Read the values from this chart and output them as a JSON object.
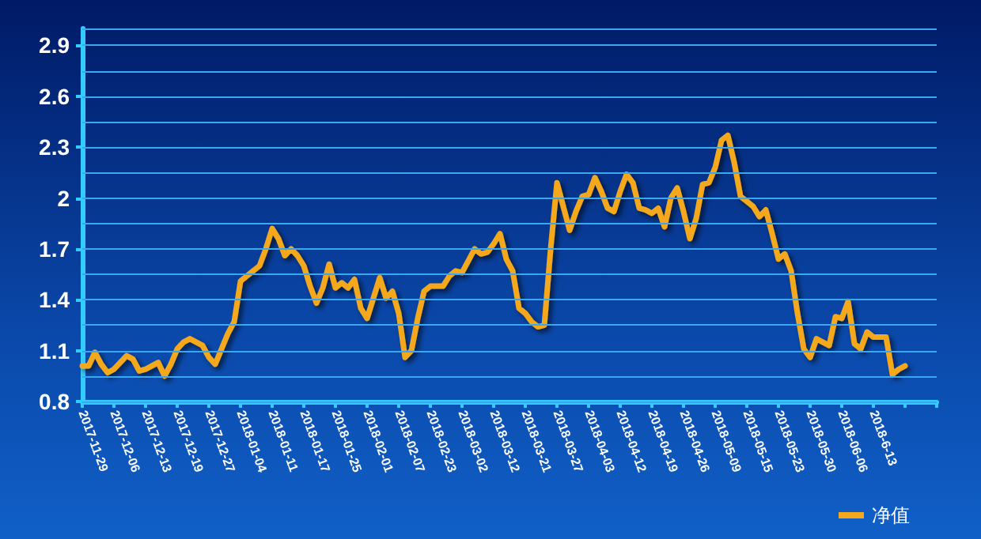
{
  "chart_data": {
    "type": "line",
    "categories": [
      "2017-11-29",
      null,
      null,
      null,
      null,
      "2017-12-06",
      null,
      null,
      null,
      null,
      "2017-12-13",
      null,
      null,
      null,
      null,
      "2017-12-19",
      null,
      null,
      null,
      null,
      "2017-12-27",
      null,
      null,
      null,
      null,
      "2018-01-04",
      null,
      null,
      null,
      null,
      "2018-01-11",
      null,
      null,
      null,
      null,
      "2018-01-17",
      null,
      null,
      null,
      null,
      "2018-01-25",
      null,
      null,
      null,
      null,
      "2018-02-01",
      null,
      null,
      null,
      null,
      "2018-02-07",
      null,
      null,
      null,
      null,
      "2018-02-23",
      null,
      null,
      null,
      null,
      "2018-03-02",
      null,
      null,
      null,
      null,
      "2018-03-12",
      null,
      null,
      null,
      null,
      "2018-03-21",
      null,
      null,
      null,
      null,
      "2018-03-27",
      null,
      null,
      null,
      null,
      "2018-04-03",
      null,
      null,
      null,
      null,
      "2018-04-12",
      null,
      null,
      null,
      null,
      "2018-04-19",
      null,
      null,
      null,
      null,
      "2018-04-26",
      null,
      null,
      null,
      null,
      "2018-05-09",
      null,
      null,
      null,
      null,
      "2018-05-15",
      null,
      null,
      null,
      null,
      "2018-05-23",
      null,
      null,
      null,
      null,
      "2018-05-30",
      null,
      null,
      null,
      null,
      "2018-06-06",
      null,
      null,
      null,
      null,
      "2018-6-13",
      null,
      null,
      null,
      null,
      null,
      null,
      null,
      null,
      null,
      null
    ],
    "series": [
      {
        "name": "净值",
        "color": "#f5a81c",
        "values": [
          1.01,
          1.01,
          1.09,
          1.02,
          0.97,
          0.99,
          1.03,
          1.07,
          1.05,
          0.98,
          0.99,
          1.01,
          1.03,
          0.95,
          1.02,
          1.11,
          1.15,
          1.17,
          1.15,
          1.13,
          1.06,
          1.02,
          1.11,
          1.2,
          1.27,
          1.51,
          1.54,
          1.57,
          1.6,
          1.7,
          1.82,
          1.76,
          1.66,
          1.7,
          1.66,
          1.6,
          1.48,
          1.38,
          1.47,
          1.61,
          1.47,
          1.5,
          1.47,
          1.52,
          1.35,
          1.29,
          1.41,
          1.53,
          1.41,
          1.45,
          1.32,
          1.06,
          1.1,
          1.29,
          1.45,
          1.48,
          1.48,
          1.48,
          1.54,
          1.57,
          1.56,
          1.63,
          1.7,
          1.67,
          1.68,
          1.73,
          1.79,
          1.64,
          1.57,
          1.35,
          1.32,
          1.27,
          1.24,
          1.25,
          1.7,
          2.09,
          1.95,
          1.81,
          1.92,
          2.01,
          2.02,
          2.12,
          2.04,
          1.94,
          1.92,
          2.04,
          2.14,
          2.09,
          1.94,
          1.93,
          1.91,
          1.94,
          1.83,
          2.0,
          2.06,
          1.92,
          1.76,
          1.88,
          2.08,
          2.09,
          2.18,
          2.34,
          2.37,
          2.21,
          2.01,
          1.98,
          1.95,
          1.89,
          1.93,
          1.79,
          1.64,
          1.67,
          1.57,
          1.32,
          1.11,
          1.06,
          1.17,
          1.15,
          1.13,
          1.3,
          1.29,
          1.39,
          1.14,
          1.11,
          1.21,
          1.18,
          1.18,
          1.18,
          0.96,
          0.99,
          1.01,
          null,
          null,
          null,
          null,
          null
        ]
      }
    ],
    "ylim": [
      0.8,
      3.0
    ],
    "yticks": [
      0.8,
      {
        "value": 0.95,
        "label": null
      },
      1.1,
      {
        "value": 1.25,
        "label": null
      },
      1.4,
      {
        "value": 1.55,
        "label": null
      },
      1.7,
      {
        "value": 1.85,
        "label": null
      },
      2,
      {
        "value": 2.15,
        "label": null
      },
      2.3,
      {
        "value": 2.45,
        "label": null
      },
      2.6,
      {
        "value": 2.75,
        "label": null
      },
      2.9,
      {
        "value": 3.0,
        "label": null
      }
    ],
    "grid": "y",
    "legend": "bottom right",
    "marker": "none",
    "line_style": "solid"
  }
}
